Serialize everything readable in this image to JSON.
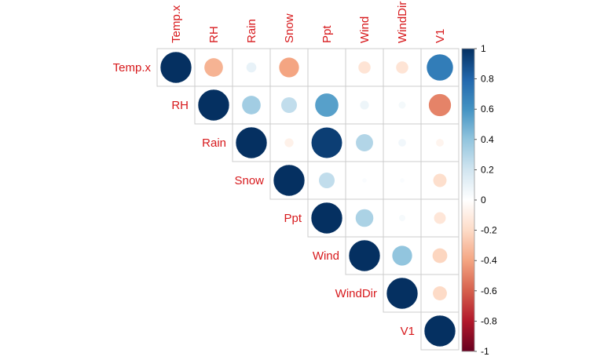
{
  "chart_data": {
    "type": "heatmap",
    "variables": [
      "Temp.x",
      "RH",
      "Rain",
      "Snow",
      "Ppt",
      "Wind",
      "WindDir",
      "V1"
    ],
    "matrix": [
      [
        1.0,
        -0.35,
        0.1,
        -0.4,
        0.0,
        -0.15,
        -0.15,
        0.7
      ],
      [
        -0.35,
        1.0,
        0.35,
        0.25,
        0.55,
        0.08,
        0.05,
        -0.5
      ],
      [
        0.1,
        0.35,
        1.0,
        -0.08,
        0.95,
        0.3,
        0.06,
        -0.06
      ],
      [
        -0.4,
        0.25,
        -0.08,
        1.0,
        0.25,
        0.02,
        0.02,
        -0.18
      ],
      [
        0.0,
        0.55,
        0.95,
        0.25,
        1.0,
        0.32,
        0.04,
        -0.14
      ],
      [
        -0.15,
        0.08,
        0.3,
        0.02,
        0.32,
        1.0,
        0.4,
        -0.22
      ],
      [
        -0.15,
        0.05,
        0.06,
        0.02,
        0.04,
        0.4,
        1.0,
        -0.2
      ],
      [
        0.7,
        -0.5,
        -0.06,
        -0.18,
        -0.14,
        -0.22,
        -0.2,
        1.0
      ]
    ],
    "layout": "upper-triangle",
    "shape": "circle",
    "colorbar": {
      "range": [
        -1,
        1
      ],
      "ticks": [
        "-1",
        "-0.8",
        "-0.6",
        "-0.4",
        "-0.2",
        "0",
        "0.2",
        "0.4",
        "0.6",
        "0.8",
        "1"
      ],
      "palette": [
        "#67001f",
        "#b2182b",
        "#d6604d",
        "#f4a582",
        "#fddbc7",
        "#ffffff",
        "#d1e5f0",
        "#92c5de",
        "#4393c3",
        "#2166ac",
        "#053061"
      ]
    },
    "label_color": "#d7191c"
  }
}
